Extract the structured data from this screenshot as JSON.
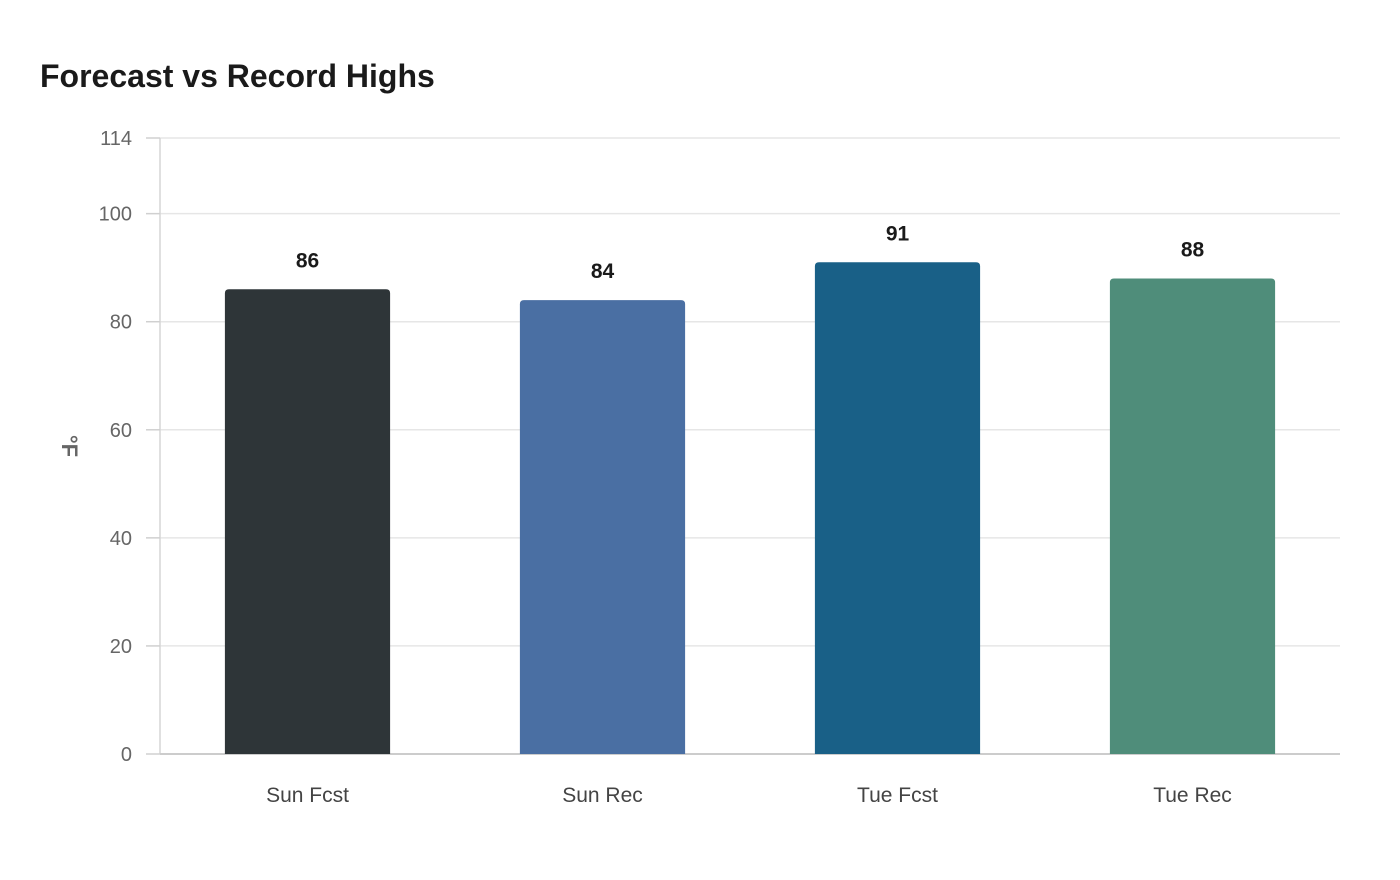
{
  "chart_data": {
    "type": "bar",
    "title": "Forecast vs Record Highs",
    "xlabel": "",
    "ylabel": "°F",
    "categories": [
      "Sun Fcst",
      "Sun Rec",
      "Tue Fcst",
      "Tue Rec"
    ],
    "values": [
      86,
      84,
      91,
      88
    ],
    "colors": [
      "#2e3538",
      "#4a6fa3",
      "#196087",
      "#4f8d7a"
    ],
    "ylim": [
      0,
      114
    ],
    "yticks": [
      0,
      20,
      40,
      60,
      80,
      100,
      114
    ],
    "grid": true,
    "data_labels": true,
    "legend": "none"
  }
}
